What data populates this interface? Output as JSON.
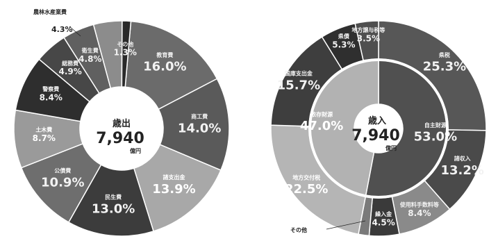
{
  "chart_data": [
    {
      "type": "pie",
      "center_label": "歳出",
      "center_value": "7,940",
      "center_unit": "億円",
      "slices": [
        {
          "name": "教育費",
          "value": 16.0,
          "label": "16.0%",
          "color": "#6b6b6b"
        },
        {
          "name": "商工費",
          "value": 14.0,
          "label": "14.0%",
          "color": "#5a5a5a"
        },
        {
          "name": "諸支出金",
          "value": 13.9,
          "label": "13.9%",
          "color": "#a8a8a8"
        },
        {
          "name": "民生費",
          "value": 13.0,
          "label": "13.0%",
          "color": "#3c3c3c"
        },
        {
          "name": "公債費",
          "value": 10.9,
          "label": "10.9%",
          "color": "#6e6e6e"
        },
        {
          "name": "土木費",
          "value": 8.7,
          "label": "8.7%",
          "color": "#9a9a9a"
        },
        {
          "name": "警察費",
          "value": 8.4,
          "label": "8.4%",
          "color": "#2e2e2e"
        },
        {
          "name": "総務費",
          "value": 4.9,
          "label": "4.9%",
          "color": "#474747"
        },
        {
          "name": "衛生費",
          "value": 4.8,
          "label": "4.8%",
          "color": "#606060"
        },
        {
          "name": "農林水産業費",
          "value": 4.3,
          "label": "4.3%",
          "color": "#8c8c8c"
        },
        {
          "name": "その他",
          "value": 1.3,
          "label": "1.3%",
          "color": "#2a2a2a"
        }
      ]
    },
    {
      "type": "pie",
      "center_label": "歳入",
      "center_value": "7,940",
      "center_unit": "億円",
      "inner_ring": [
        {
          "name": "自主財源",
          "value": 53.0,
          "label": "53.0%",
          "color": "#505050"
        },
        {
          "name": "依存財源",
          "value": 47.0,
          "label": "47.0%",
          "color": "#b2b2b2"
        }
      ],
      "slices": [
        {
          "name": "県税",
          "value": 25.3,
          "label": "25.3%",
          "color": "#575757"
        },
        {
          "name": "諸収入",
          "value": 13.2,
          "label": "13.2%",
          "color": "#4a4a4a"
        },
        {
          "name": "使用料手数料等",
          "value": 8.4,
          "label": "8.4%",
          "color": "#8a8a8a"
        },
        {
          "name": "繰入金",
          "value": 4.5,
          "label": "4.5%",
          "color": "#3a3a3a"
        },
        {
          "name": "その他",
          "value": 1.6,
          "label": "",
          "color": "#7a7a7a"
        },
        {
          "name": "地方交付税",
          "value": 22.5,
          "label": "22.5%",
          "color": "#b5b5b5"
        },
        {
          "name": "国庫支出金",
          "value": 15.7,
          "label": "15.7%",
          "color": "#3e3e3e"
        },
        {
          "name": "県債",
          "value": 5.3,
          "label": "5.3%",
          "color": "#2f2f2f"
        },
        {
          "name": "地方譲与税等",
          "value": 3.5,
          "label": "3.5%",
          "color": "#4f4f4f"
        }
      ]
    }
  ]
}
